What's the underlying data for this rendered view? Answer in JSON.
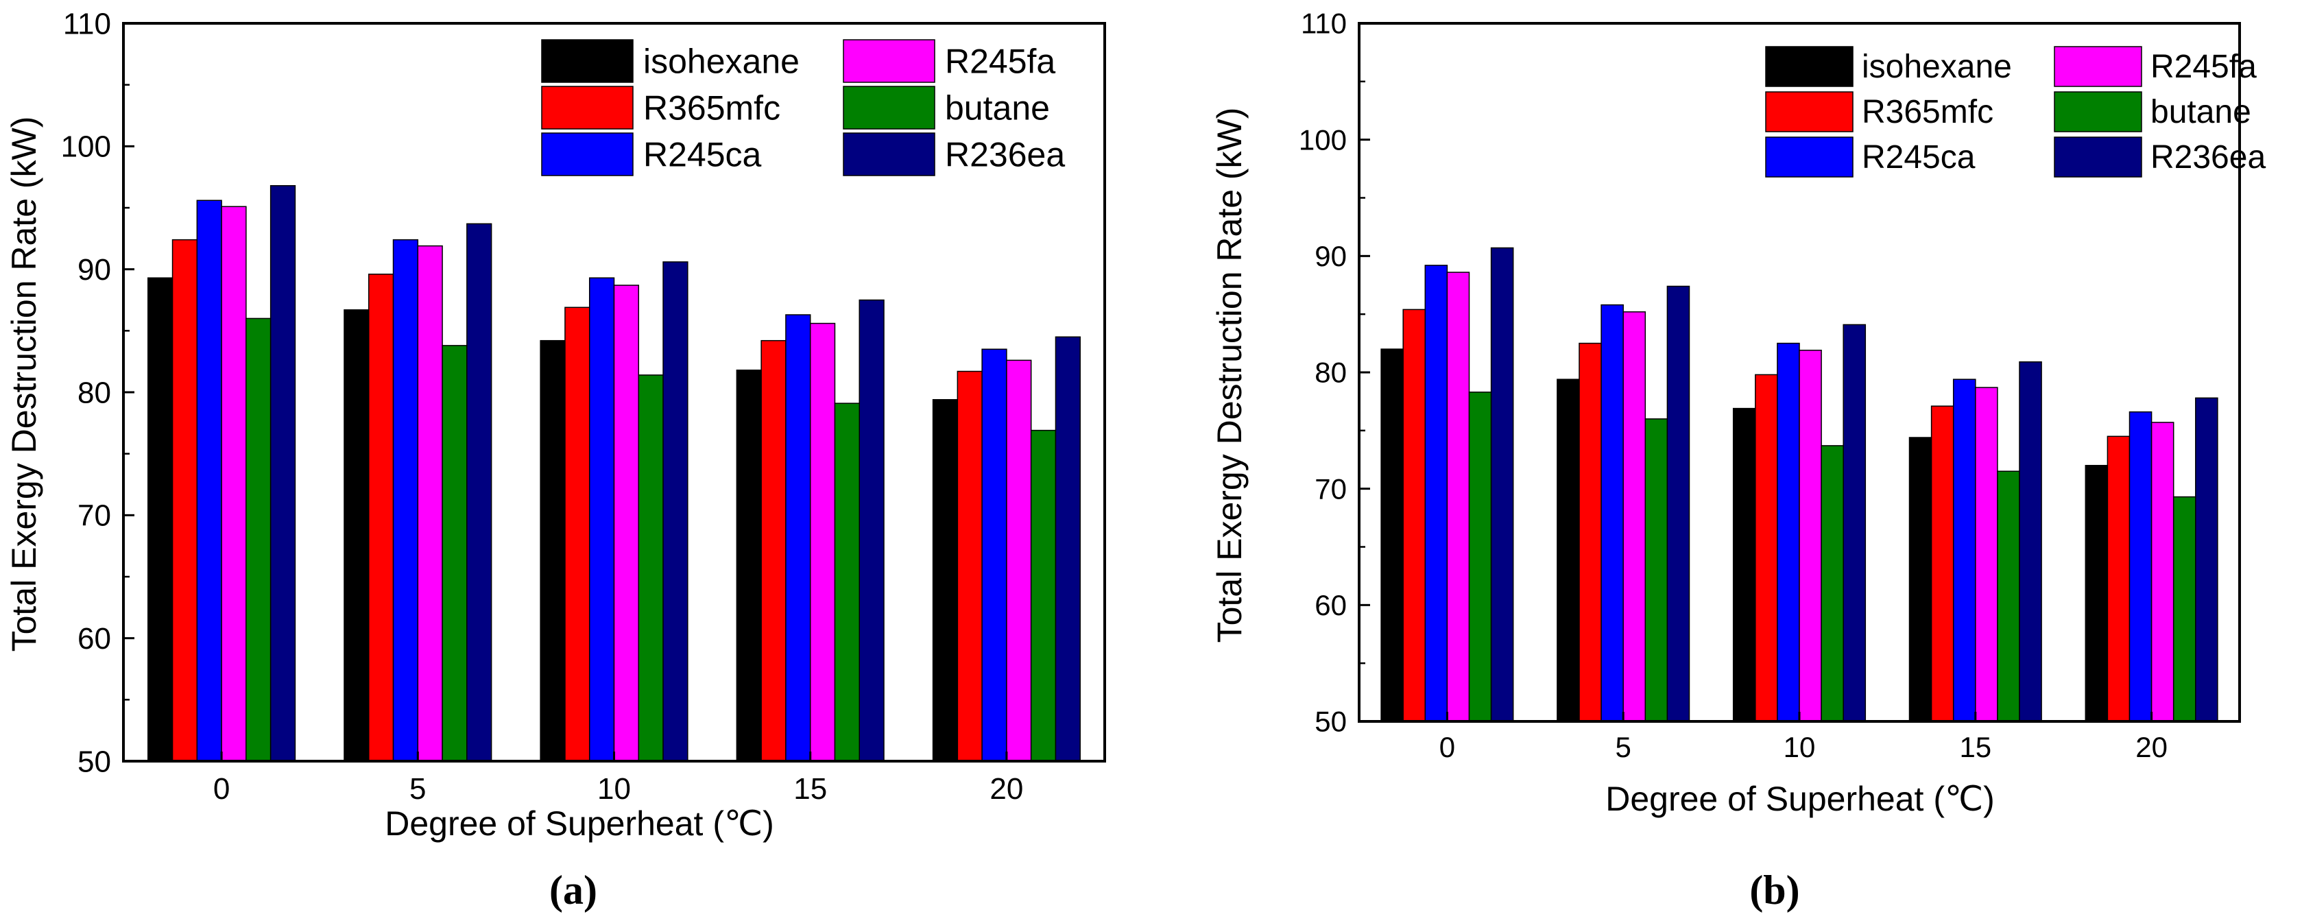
{
  "chart_data": [
    {
      "type": "bar",
      "caption": "(a)",
      "xlabel": "Degree of  Superheat (℃)",
      "ylabel": "Total Exergy Destruction Rate (kW)",
      "ylim": [
        50,
        110
      ],
      "yticks": [
        50,
        60,
        70,
        80,
        90,
        100,
        110
      ],
      "categories": [
        "0",
        "5",
        "10",
        "15",
        "20"
      ],
      "legend_position": "top-right",
      "series": [
        {
          "name": "isohexane",
          "color": "#000000",
          "values": [
            89.3,
            86.7,
            84.2,
            81.8,
            79.4
          ]
        },
        {
          "name": "R365mfc",
          "color": "#ff0000",
          "values": [
            92.4,
            89.6,
            86.9,
            84.2,
            81.7
          ]
        },
        {
          "name": "R245ca",
          "color": "#0000ff",
          "values": [
            95.6,
            92.4,
            89.3,
            86.3,
            83.5
          ]
        },
        {
          "name": "R245fa",
          "color": "#ff00ff",
          "values": [
            95.1,
            91.9,
            88.7,
            85.6,
            82.6
          ]
        },
        {
          "name": "butane",
          "color": "#008000",
          "values": [
            86.0,
            83.8,
            81.4,
            79.1,
            76.9
          ]
        },
        {
          "name": "R236ea",
          "color": "#000080",
          "values": [
            96.8,
            93.7,
            90.6,
            87.5,
            84.5
          ]
        }
      ]
    },
    {
      "type": "bar",
      "caption": "(b)",
      "xlabel": "Degree of  Superheat (℃)",
      "ylabel": "Total Exergy Destruction Rate (kW)",
      "ylim": [
        50,
        110
      ],
      "yticks": [
        50,
        60,
        70,
        80,
        90,
        100,
        110
      ],
      "categories": [
        "0",
        "5",
        "10",
        "15",
        "20"
      ],
      "legend_position": "top-right",
      "series": [
        {
          "name": "isohexane",
          "color": "#000000",
          "values": [
            82.0,
            79.4,
            76.9,
            74.4,
            72.0
          ]
        },
        {
          "name": "R365mfc",
          "color": "#ff0000",
          "values": [
            85.4,
            82.5,
            79.8,
            77.1,
            74.5
          ]
        },
        {
          "name": "R245ca",
          "color": "#0000ff",
          "values": [
            89.2,
            85.8,
            82.5,
            79.4,
            76.6
          ]
        },
        {
          "name": "R245fa",
          "color": "#ff00ff",
          "values": [
            88.6,
            85.2,
            81.9,
            78.7,
            75.7
          ]
        },
        {
          "name": "butane",
          "color": "#008000",
          "values": [
            78.3,
            76.0,
            73.7,
            71.5,
            69.3
          ]
        },
        {
          "name": "R236ea",
          "color": "#000080",
          "values": [
            90.7,
            87.4,
            84.1,
            80.9,
            77.8
          ]
        }
      ]
    }
  ]
}
